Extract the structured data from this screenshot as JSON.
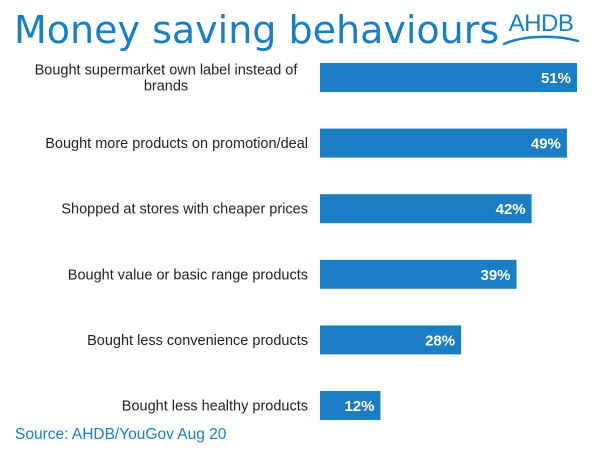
{
  "header": {
    "title": "Money saving behaviours",
    "logo_text": "AHDB"
  },
  "footer": {
    "source": "Source: AHDB/YouGov Aug 20"
  },
  "colors": {
    "accent": "#1a7ec4",
    "bar": "#1a7ec4",
    "label": "#222222",
    "value_label": "#ffffff"
  },
  "chart_data": {
    "type": "bar",
    "orientation": "horizontal",
    "title": "Money saving behaviours",
    "categories": [
      "Bought supermarket own label instead of brands",
      "Bought more products on promotion/deal",
      "Shopped at stores with cheaper prices",
      "Bought value or basic range products",
      "Bought less convenience products",
      "Bought less healthy products"
    ],
    "values": [
      51,
      49,
      42,
      39,
      28,
      12
    ],
    "value_labels": [
      "51%",
      "49%",
      "42%",
      "39%",
      "28%",
      "12%"
    ],
    "unit": "%",
    "xlim": [
      0,
      51
    ],
    "grid": false,
    "legend": "none"
  }
}
